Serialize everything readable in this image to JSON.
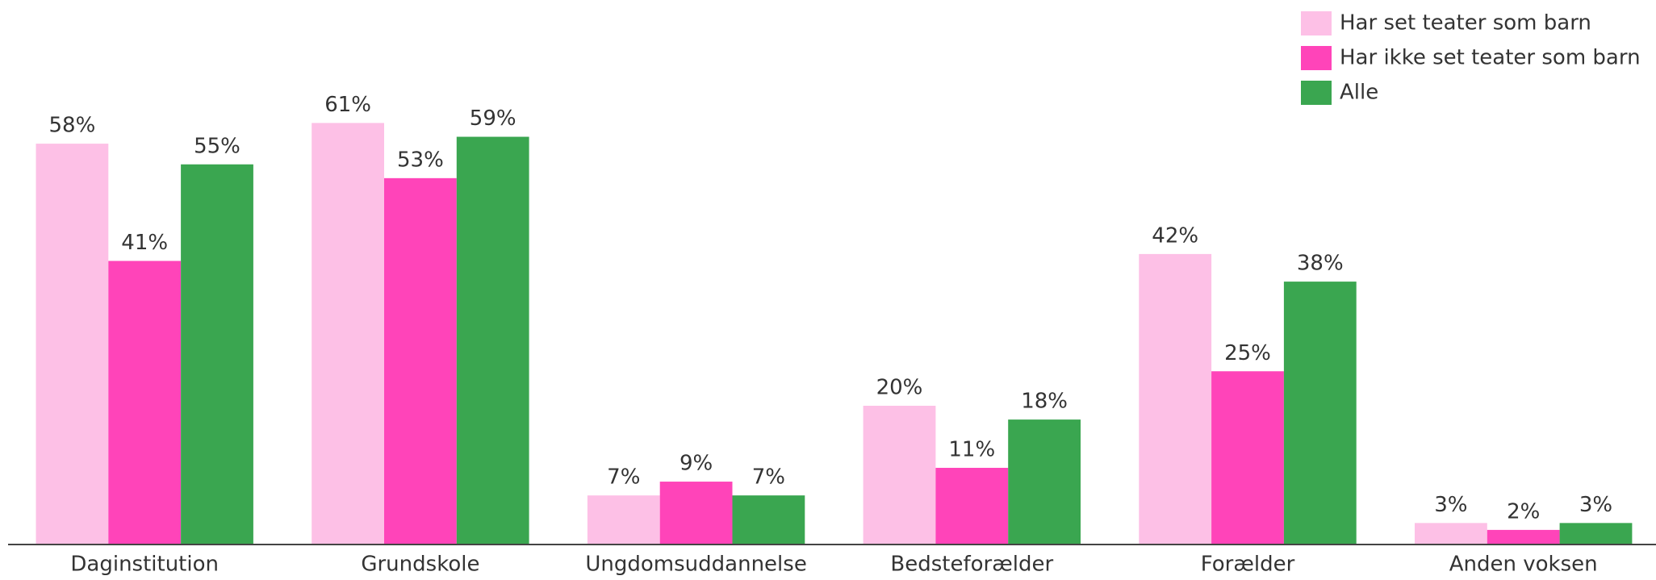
{
  "chart_data": {
    "type": "bar",
    "categories": [
      "Daginstitution",
      "Grundskole",
      "Ungdomsuddannelse",
      "Bedsteforælder",
      "Forælder",
      "Anden voksen"
    ],
    "series": [
      {
        "name": "Har set teater som barn",
        "color": "#fdc0e6",
        "values": [
          58,
          61,
          7,
          20,
          42,
          3
        ],
        "value_labels": [
          "58%",
          "61%",
          "7%",
          "20%",
          "42%",
          "3%"
        ]
      },
      {
        "name": "Har ikke set teater som barn",
        "color": "#ff44b9",
        "values": [
          41,
          53,
          9,
          11,
          25,
          2
        ],
        "value_labels": [
          "41%",
          "53%",
          "9%",
          "11%",
          "25%",
          "2%"
        ]
      },
      {
        "name": "Alle",
        "color": "#3aa650",
        "values": [
          55,
          59,
          7,
          18,
          38,
          3
        ],
        "value_labels": [
          "55%",
          "59%",
          "7%",
          "18%",
          "38%",
          "3%"
        ]
      }
    ],
    "legend": "top-right"
  }
}
